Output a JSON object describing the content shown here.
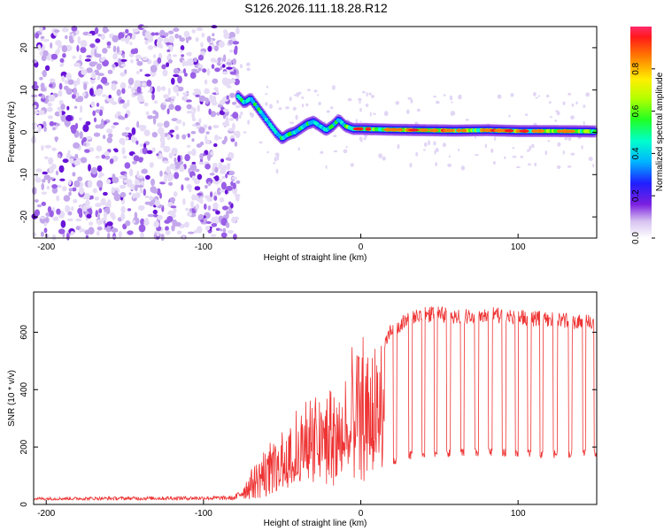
{
  "page": {
    "title": "S126.2026.111.18.28.R12"
  },
  "colorbar": {
    "label": "Normalized spectral amplitude",
    "ticks": [
      "0.0",
      "0.2",
      "0.4",
      "0.6",
      "0.8"
    ],
    "tick_values": [
      0.0,
      0.2,
      0.4,
      0.6,
      0.8
    ],
    "range": [
      0,
      1
    ]
  },
  "chart_data": [
    {
      "type": "heatmap",
      "name": "spectrogram",
      "xlabel": "Height of straight line (km)",
      "ylabel": "Frequency (Hz)",
      "xlim": [
        -208,
        150
      ],
      "ylim": [
        -25,
        25
      ],
      "xticks": [
        -200,
        -100,
        0,
        100
      ],
      "xtick_labels": [
        "-200",
        "-100",
        "0",
        "100"
      ],
      "yticks": [
        -20,
        -10,
        0,
        10,
        20
      ],
      "ytick_labels": [
        "-20",
        "-10",
        "0",
        "10",
        "20"
      ],
      "noise_region_x": [
        -208,
        -78
      ],
      "ridge": {
        "x": [
          -78,
          -74,
          -70,
          -66,
          -62,
          -58,
          -54,
          -50,
          -46,
          -42,
          -38,
          -34,
          -30,
          -26,
          -22,
          -18,
          -14,
          -10,
          -5,
          0,
          20,
          40,
          60,
          80,
          100,
          120,
          150
        ],
        "y": [
          8.5,
          7,
          8,
          6,
          4,
          2,
          0,
          -1.5,
          -0.5,
          0,
          1,
          2,
          2.5,
          1.5,
          0.5,
          1.5,
          3,
          1.5,
          0.8,
          0.8,
          0.6,
          0.5,
          0.4,
          0.5,
          0.3,
          0.3,
          0.2
        ]
      }
    },
    {
      "type": "line",
      "name": "snr",
      "xlabel": "Height of straight line (km)",
      "ylabel": "SNR (10 * v/v)",
      "color": "#ee3333",
      "xlim": [
        -208,
        150
      ],
      "ylim": [
        0,
        740
      ],
      "xticks": [
        -200,
        -100,
        0,
        100
      ],
      "xtick_labels": [
        "-200",
        "-100",
        "0",
        "100"
      ],
      "yticks": [
        0,
        200,
        400,
        600
      ],
      "ytick_labels": [
        "0",
        "200",
        "400",
        "600"
      ],
      "envelope": {
        "x": [
          -208,
          -80,
          -62,
          -55,
          -45,
          -35,
          -25,
          -15,
          -10,
          -5,
          0,
          5,
          10,
          15,
          20,
          30,
          40,
          50,
          60,
          80,
          100,
          120,
          150
        ],
        "low": [
          15,
          15,
          20,
          40,
          60,
          80,
          70,
          60,
          80,
          70,
          60,
          100,
          110,
          130,
          150,
          170,
          175,
          180,
          180,
          180,
          178,
          175,
          180
        ],
        "high": [
          25,
          30,
          190,
          230,
          300,
          380,
          400,
          430,
          480,
          560,
          620,
          600,
          580,
          600,
          640,
          670,
          690,
          690,
          680,
          690,
          680,
          670,
          660
        ]
      }
    }
  ]
}
